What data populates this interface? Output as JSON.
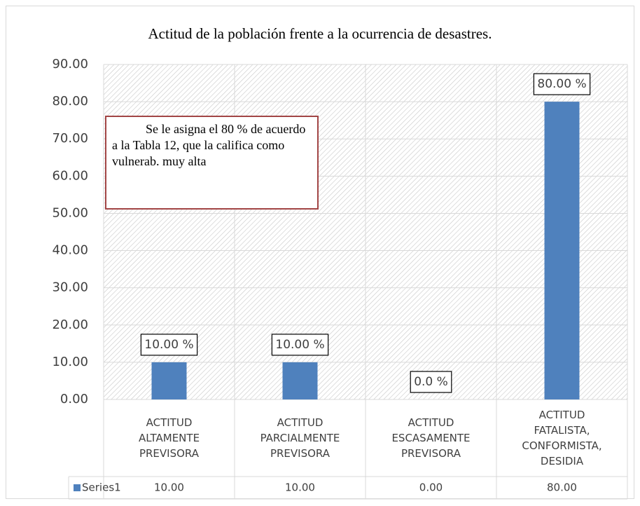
{
  "chart_data": {
    "type": "bar",
    "title": "Actitud de la población frente a la ocurrencia de desastres.",
    "categories": [
      "ACTITUD ALTAMENTE PREVISORA",
      "ACTITUD PARCIALMENTE PREVISORA",
      "ACTITUD ESCASAMENTE PREVISORA",
      "ACTITUD FATALISTA, CONFORMISTA, DESIDIA"
    ],
    "series": [
      {
        "name": "Series1",
        "color": "#4f81bd",
        "values": [
          10,
          10,
          0,
          80
        ],
        "value_labels": [
          "10.00 %",
          "10.00 %",
          "0.0 %",
          "80.00 %"
        ],
        "table_labels": [
          "10.00",
          "10.00",
          "0.00",
          "80.00"
        ]
      }
    ],
    "ylim": [
      0,
      90
    ],
    "yticks": [
      {
        "value": 0,
        "label": "0.00"
      },
      {
        "value": 10,
        "label": "10.00"
      },
      {
        "value": 20,
        "label": "20.00"
      },
      {
        "value": 30,
        "label": "30.00"
      },
      {
        "value": 40,
        "label": "40.00"
      },
      {
        "value": 50,
        "label": "50.00"
      },
      {
        "value": 60,
        "label": "60.00"
      },
      {
        "value": 70,
        "label": "70.00"
      },
      {
        "value": 80,
        "label": "80.00"
      },
      {
        "value": 90,
        "label": "90.00"
      }
    ],
    "grid": true,
    "annotation": "Se le asigna el 80 % de acuerdo a la Tabla 12, que la califica como vulnerab. muy alta"
  }
}
